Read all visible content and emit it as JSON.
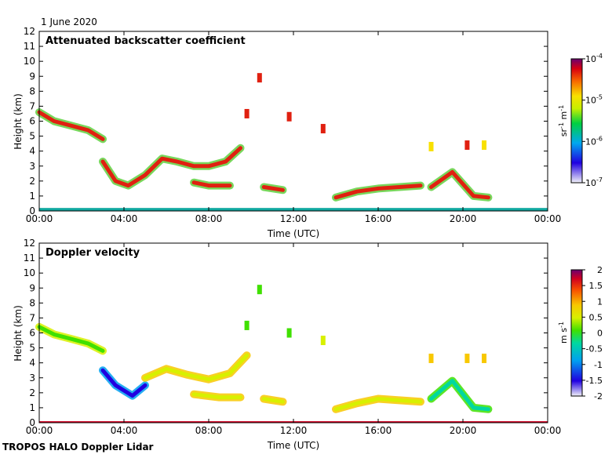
{
  "header": {
    "date": "1 June 2020"
  },
  "footer": {
    "text": "TROPOS HALO Doppler Lidar"
  },
  "chart_data": [
    {
      "type": "heatmap",
      "title": "Attenuated backscatter coefficient",
      "xlabel": "Time (UTC)",
      "ylabel": "Height (km)",
      "xlim": [
        0,
        24
      ],
      "ylim": [
        0,
        12
      ],
      "x_ticks": [
        "00:00",
        "04:00",
        "08:00",
        "12:00",
        "16:00",
        "20:00",
        "00:00"
      ],
      "y_ticks": [
        "0",
        "1",
        "2",
        "3",
        "4",
        "5",
        "6",
        "7",
        "8",
        "9",
        "10",
        "11",
        "12"
      ],
      "colorbar": {
        "scale": "log",
        "range": [
          1e-07,
          0.0001
        ],
        "ticks": [
          "10^-7",
          "10^-6",
          "10^-5",
          "10^-4"
        ],
        "unit": "sr^-1 m^-1"
      },
      "layers": [
        {
          "t": [
            0.0,
            0.7,
            1.5,
            2.3,
            3.0
          ],
          "h": [
            6.6,
            6.0,
            5.7,
            5.4,
            4.8
          ],
          "value": "high"
        },
        {
          "t": [
            3.0,
            3.6,
            4.2,
            5.0,
            5.8,
            6.5,
            7.3,
            8.0,
            8.8,
            9.5
          ],
          "h": [
            3.3,
            2.0,
            1.7,
            2.4,
            3.5,
            3.3,
            3.0,
            3.0,
            3.3,
            4.2
          ],
          "value": "high"
        },
        {
          "t": [
            7.3,
            8.0,
            9.0
          ],
          "h": [
            1.9,
            1.7,
            1.7
          ],
          "value": "high"
        },
        {
          "t": [
            10.6,
            11.5
          ],
          "h": [
            1.6,
            1.4
          ],
          "value": "high"
        },
        {
          "t": [
            14.0,
            15.0,
            16.0,
            17.0,
            18.0
          ],
          "h": [
            0.9,
            1.3,
            1.5,
            1.6,
            1.7
          ],
          "value": "high"
        },
        {
          "t": [
            18.5,
            19.5,
            20.5,
            21.2
          ],
          "h": [
            1.6,
            2.6,
            1.0,
            0.9
          ],
          "value": "high"
        }
      ],
      "near_ground": {
        "t": [
          0,
          24
        ],
        "h": [
          0,
          0.2
        ],
        "value": "low"
      },
      "clouds": [
        {
          "t": 9.8,
          "h": 6.5,
          "value": "high"
        },
        {
          "t": 11.8,
          "h": 6.3,
          "value": "high"
        },
        {
          "t": 13.4,
          "h": 5.5,
          "value": "high"
        },
        {
          "t": 20.2,
          "h": 4.4,
          "value": "high"
        },
        {
          "t": 10.4,
          "h": 8.9,
          "value": "high"
        },
        {
          "t": 18.5,
          "h": 4.3,
          "value": "medium"
        },
        {
          "t": 21.0,
          "h": 4.4,
          "value": "medium"
        }
      ]
    },
    {
      "type": "heatmap",
      "title": "Doppler velocity",
      "xlabel": "Time (UTC)",
      "ylabel": "Height (km)",
      "xlim": [
        0,
        24
      ],
      "ylim": [
        0,
        12
      ],
      "x_ticks": [
        "00:00",
        "04:00",
        "08:00",
        "12:00",
        "16:00",
        "20:00",
        "00:00"
      ],
      "y_ticks": [
        "0",
        "1",
        "2",
        "3",
        "4",
        "5",
        "6",
        "7",
        "8",
        "9",
        "10",
        "11",
        "12"
      ],
      "colorbar": {
        "scale": "linear",
        "range": [
          -2,
          2
        ],
        "ticks": [
          "2",
          "1.5",
          "1",
          "0.5",
          "0",
          "-0.5",
          "-1",
          "-1.5",
          "-2"
        ],
        "unit": "m s^-1"
      },
      "layers": [
        {
          "t": [
            0.0,
            0.7,
            1.5,
            2.3,
            3.0
          ],
          "h": [
            6.4,
            5.9,
            5.6,
            5.3,
            4.8
          ],
          "value": 0.1
        },
        {
          "t": [
            3.0,
            3.6,
            4.4,
            5.0
          ],
          "h": [
            3.5,
            2.5,
            1.8,
            2.5
          ],
          "value": -1.3
        },
        {
          "t": [
            5.0,
            6.0,
            7.0,
            8.0,
            9.0,
            9.8
          ],
          "h": [
            3.0,
            3.6,
            3.2,
            2.9,
            3.3,
            4.5
          ],
          "value": 0.5
        },
        {
          "t": [
            7.3,
            8.5,
            9.5
          ],
          "h": [
            1.9,
            1.7,
            1.7
          ],
          "value": 0.3
        },
        {
          "t": [
            10.6,
            11.5
          ],
          "h": [
            1.6,
            1.4
          ],
          "value": 0.4
        },
        {
          "t": [
            14.0,
            15.0,
            16.0,
            17.0,
            18.0
          ],
          "h": [
            0.9,
            1.3,
            1.6,
            1.5,
            1.4
          ],
          "value": 0.6
        },
        {
          "t": [
            18.5,
            19.5,
            20.5,
            21.2
          ],
          "h": [
            1.6,
            2.8,
            1.0,
            0.9
          ],
          "value": -0.6
        }
      ],
      "near_ground": {
        "t": [
          0,
          24
        ],
        "h": [
          0,
          0.1
        ],
        "value": 1.8
      },
      "clouds": [
        {
          "t": 9.8,
          "h": 6.5,
          "value": 0.2
        },
        {
          "t": 11.8,
          "h": 6.0,
          "value": 0.1
        },
        {
          "t": 13.4,
          "h": 5.5,
          "value": 0.4
        },
        {
          "t": 20.2,
          "h": 4.3,
          "value": 1.2
        },
        {
          "t": 10.4,
          "h": 8.9,
          "value": 0.0
        },
        {
          "t": 18.5,
          "h": 4.3,
          "value": 1.0
        },
        {
          "t": 21.0,
          "h": 4.3,
          "value": 0.8
        }
      ]
    }
  ]
}
